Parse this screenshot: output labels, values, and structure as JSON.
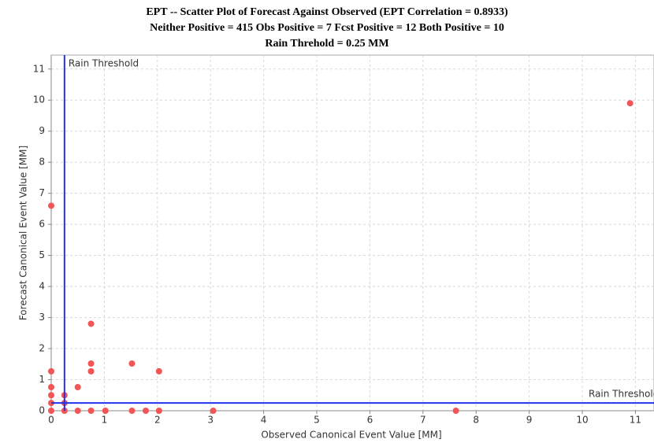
{
  "chart_data": {
    "type": "scatter",
    "title": [
      "EPT -- Scatter Plot of Forecast Against Observed (EPT Correlation = 0.8933)",
      "Neither Positive = 415    Obs Positive = 7    Fcst Positive = 12    Both Positive = 10",
      "Rain Threhold = 0.25 MM"
    ],
    "x_label": "Observed Canonical Event Value [MM]",
    "y_label": "Forecast Canonical Event Value [MM]",
    "color": "#f25555",
    "grid": true,
    "xlim": [
      0,
      11.35
    ],
    "ylim": [
      0,
      11.45
    ],
    "xticks": [
      0,
      1,
      2,
      3,
      4,
      5,
      6,
      7,
      8,
      9,
      10,
      11
    ],
    "yticks": [
      0,
      1,
      2,
      3,
      4,
      5,
      6,
      7,
      8,
      9,
      10,
      11
    ],
    "x": [
      10.9,
      0,
      0.75,
      0.75,
      1.52,
      0.75,
      2.03,
      0,
      0.5,
      0,
      0,
      0.25,
      0.25,
      0,
      0,
      0.25,
      0.5,
      0.75,
      1.02,
      1.52,
      1.78,
      2.03,
      3.05,
      7.62
    ],
    "y": [
      9.9,
      6.6,
      2.8,
      1.52,
      1.52,
      1.27,
      1.27,
      1.27,
      0.76,
      0.76,
      0.5,
      0.5,
      0.25,
      0.25,
      0,
      0,
      0,
      0,
      0,
      0,
      0,
      0,
      0,
      0
    ],
    "threshold_lines": [
      {
        "axis": "x",
        "value": 0.25,
        "label": "Rain Threshold",
        "color": "#2233ee"
      },
      {
        "axis": "y",
        "value": 0.25,
        "label": "Rain Threshold",
        "color": "#2233ee"
      }
    ]
  }
}
